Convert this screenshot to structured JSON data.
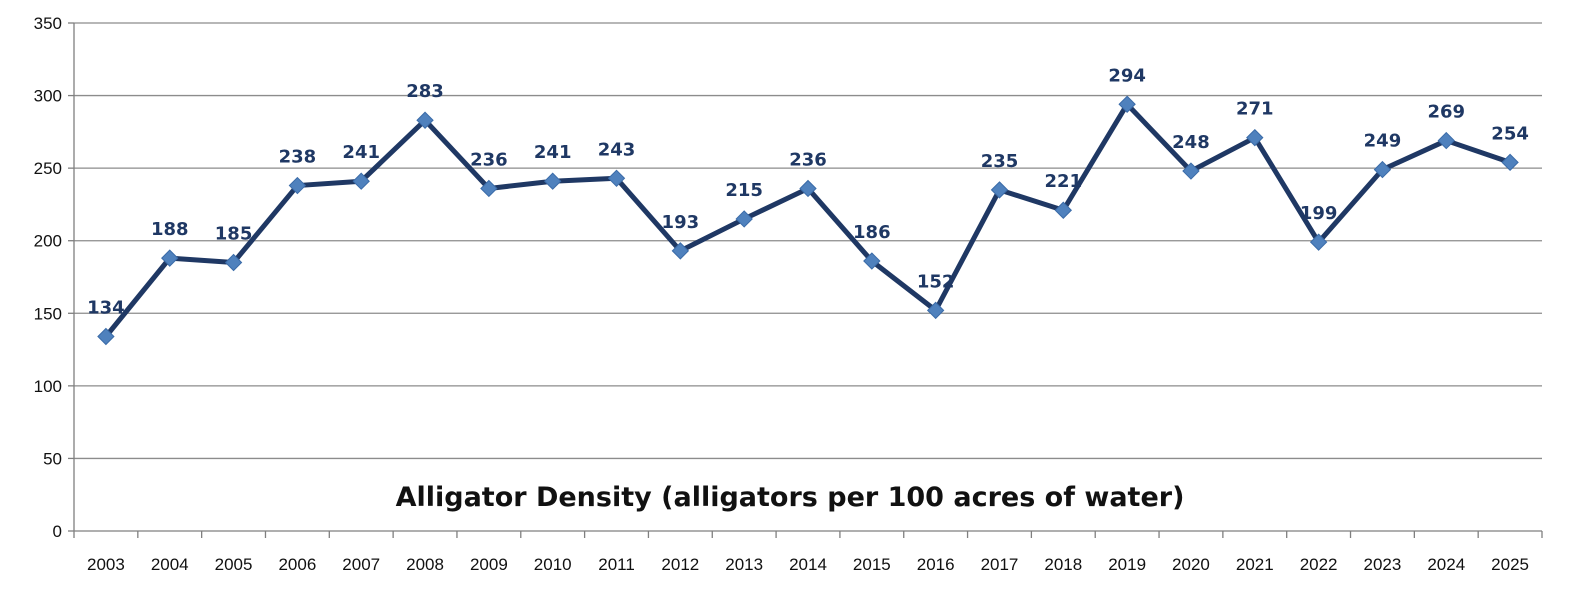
{
  "chart_data": {
    "type": "line",
    "title": "Alligator Density (alligators per 100 acres of water)",
    "xlabel": "",
    "ylabel": "",
    "categories": [
      "2003",
      "2004",
      "2005",
      "2006",
      "2007",
      "2008",
      "2009",
      "2010",
      "2011",
      "2012",
      "2013",
      "2014",
      "2015",
      "2016",
      "2017",
      "2018",
      "2019",
      "2020",
      "2021",
      "2022",
      "2023",
      "2024",
      "2025"
    ],
    "series": [
      {
        "values": [
          134,
          188,
          185,
          238,
          241,
          283,
          236,
          241,
          243,
          193,
          215,
          236,
          186,
          152,
          235,
          221,
          294,
          248,
          271,
          199,
          249,
          269,
          254
        ]
      }
    ],
    "ylim": [
      0,
      350
    ],
    "yticks": [
      0,
      50,
      100,
      150,
      200,
      250,
      300,
      350
    ],
    "grid": true,
    "legend": "none",
    "data_labels": true,
    "colors": {
      "line": "#1F3864",
      "marker": "#4F81BD",
      "marker_stroke": "#3A6BA8",
      "grid": "#8C8C8C",
      "axis": "#7F7F7F",
      "label": "#1F3864"
    }
  }
}
